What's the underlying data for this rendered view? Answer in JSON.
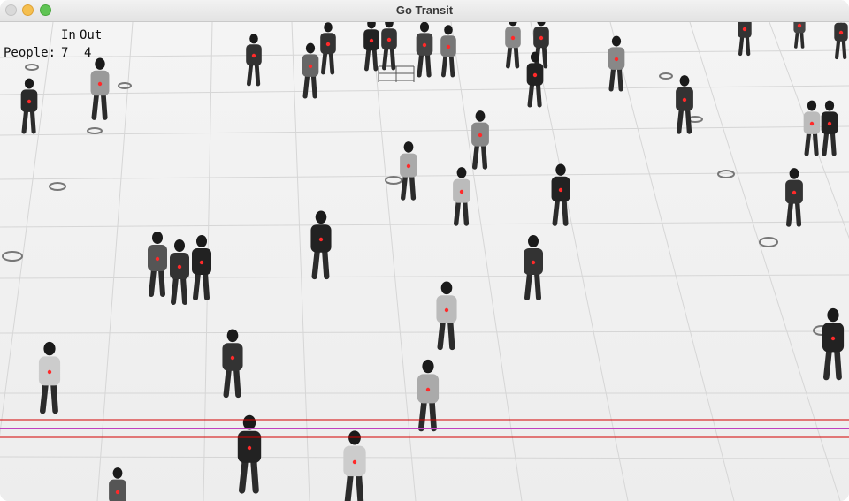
{
  "window": {
    "title": "Go Transit"
  },
  "counter": {
    "in_label": "In",
    "out_label": "Out",
    "people_label": "People:",
    "in_count": "7",
    "out_count": "4"
  },
  "colors": {
    "detection_dot": "#ff2a2a",
    "line_red": "#d40000",
    "line_magenta": "#c040c0"
  }
}
